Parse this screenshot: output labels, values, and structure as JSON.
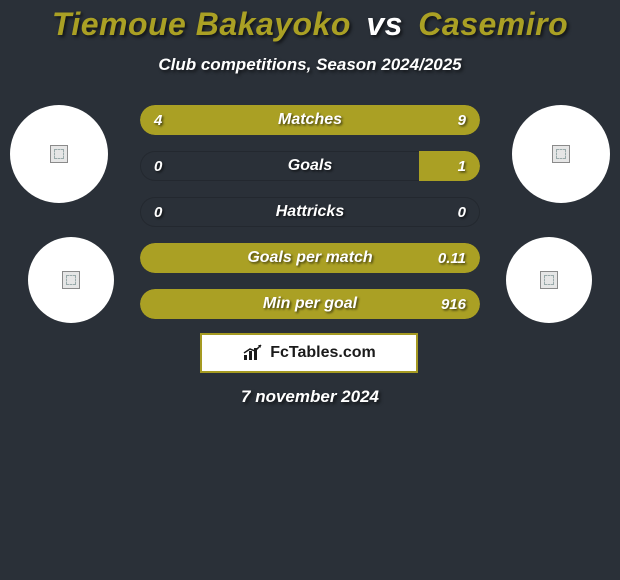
{
  "header": {
    "player1": "Tiemoue Bakayoko",
    "vs": "vs",
    "player2": "Casemiro",
    "subtitle": "Club competitions, Season 2024/2025"
  },
  "colors": {
    "accent": "#aaa024",
    "background": "#2a3038",
    "text": "#ffffff",
    "avatar_bg": "#ffffff",
    "badge_border": "#a59a22",
    "badge_bg": "#ffffff"
  },
  "stats": [
    {
      "label": "Matches",
      "left_value": "4",
      "right_value": "9",
      "left_pct": 31,
      "right_pct": 69,
      "full": false
    },
    {
      "label": "Goals",
      "left_value": "0",
      "right_value": "1",
      "left_pct": 0,
      "right_pct": 18,
      "full": false
    },
    {
      "label": "Hattricks",
      "left_value": "0",
      "right_value": "0",
      "left_pct": 0,
      "right_pct": 0,
      "full": false
    },
    {
      "label": "Goals per match",
      "left_value": "",
      "right_value": "0.11",
      "left_pct": 0,
      "right_pct": 0,
      "full": true
    },
    {
      "label": "Min per goal",
      "left_value": "",
      "right_value": "916",
      "left_pct": 0,
      "right_pct": 0,
      "full": true
    }
  ],
  "footer": {
    "brand": "FcTables.com",
    "date": "7 november 2024"
  }
}
